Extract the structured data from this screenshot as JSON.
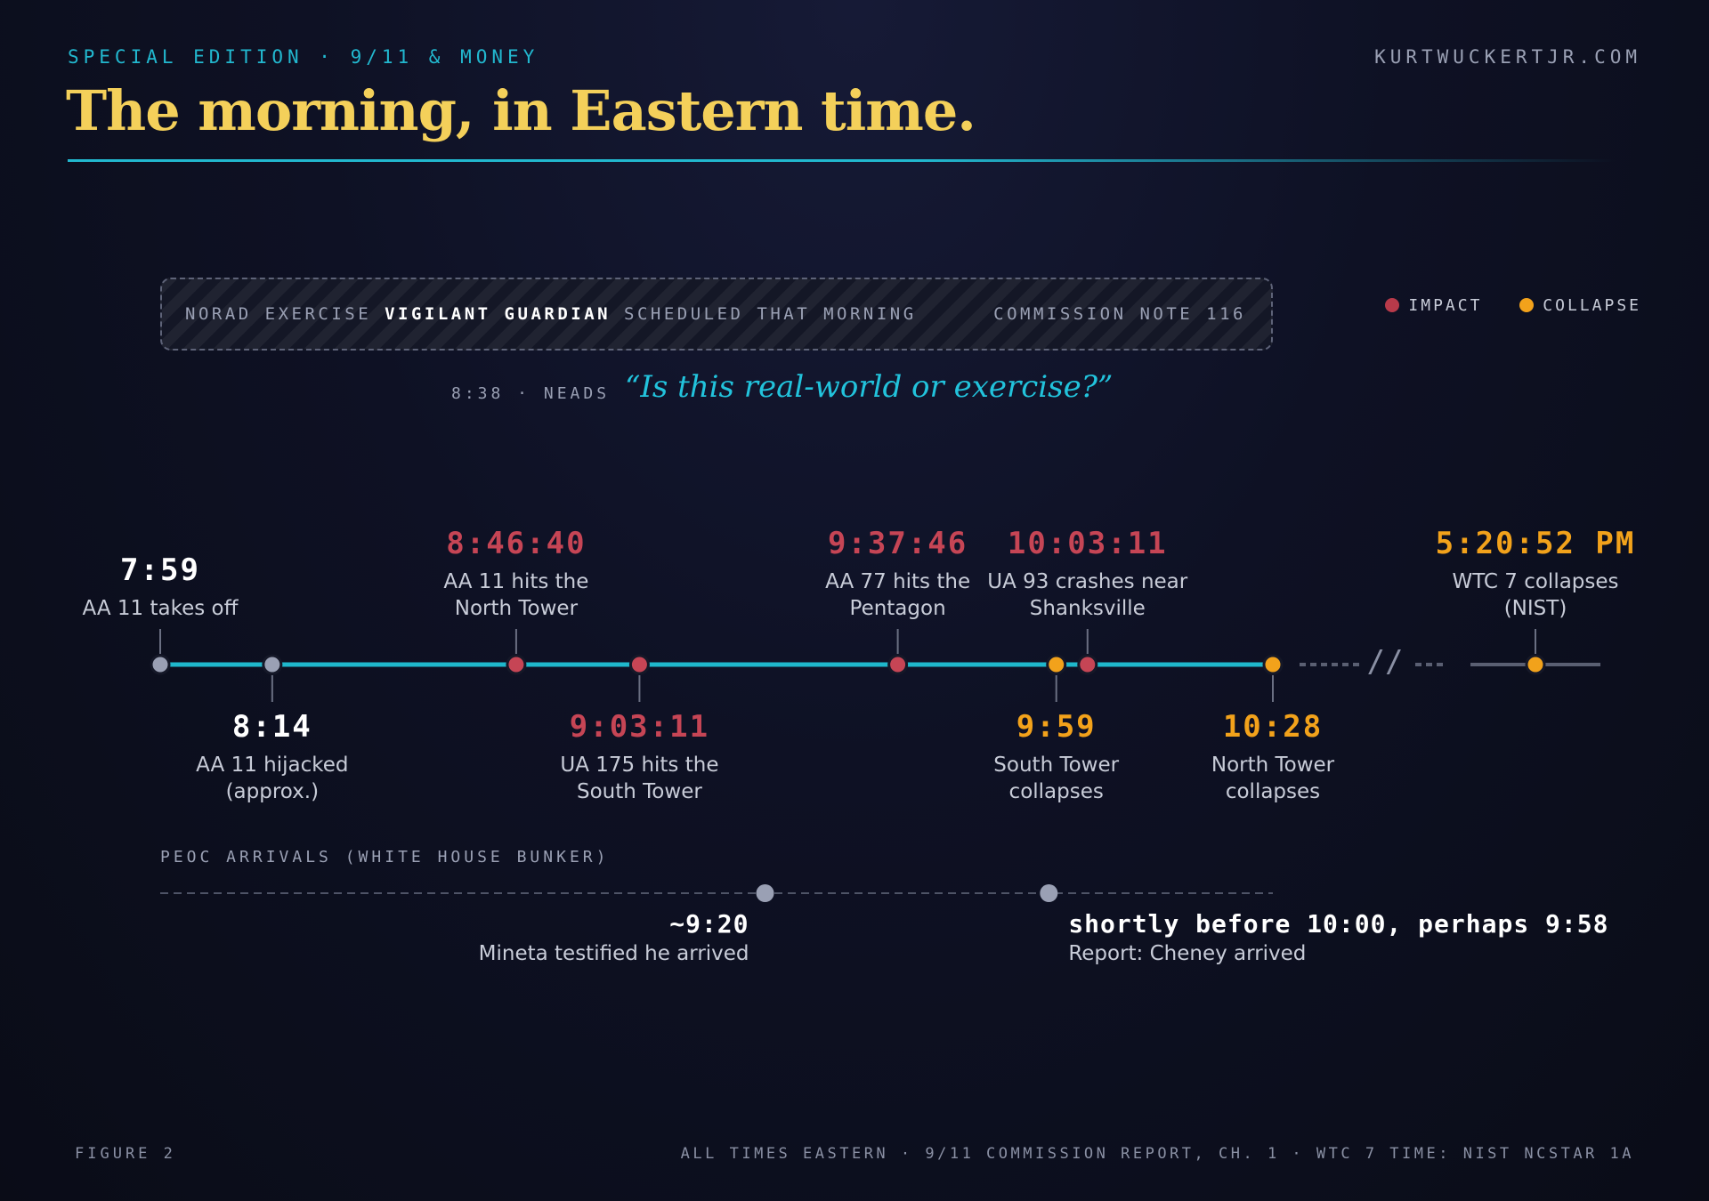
{
  "header": {
    "kicker": "SPECIAL EDITION · 9/11 & MONEY",
    "site": "KURTWUCKERTJR.COM",
    "title": "The morning, in Eastern time."
  },
  "exercise_box": {
    "prefix": "NORAD EXERCISE",
    "name": "VIGILANT GUARDIAN",
    "suffix": "SCHEDULED THAT MORNING",
    "note": "COMMISSION NOTE 116"
  },
  "quote": {
    "time_source": "8:38 · NEADS",
    "text": "“Is this real-world or exercise?”"
  },
  "legend": [
    {
      "label": "IMPACT",
      "color": "#b83a4a"
    },
    {
      "label": "COLLAPSE",
      "color": "#f2a21b"
    }
  ],
  "colors": {
    "timeline": "#1fb8cc",
    "neutral": "#9aa0b4",
    "impact": "#c64555",
    "collapse": "#f2a21b",
    "continuation": "#5a5f72"
  },
  "timeline": {
    "break_label": "//",
    "events": [
      {
        "time": "7:59",
        "label": "AA 11 takes off",
        "kind": "neutral",
        "side": "above",
        "minutes": 479
      },
      {
        "time": "8:14",
        "label": "AA 11 hijacked (approx.)",
        "kind": "neutral",
        "side": "below",
        "minutes": 494
      },
      {
        "time": "8:46:40",
        "label": "AA 11 hits the North Tower",
        "kind": "impact",
        "side": "above",
        "minutes": 526.67
      },
      {
        "time": "9:03:11",
        "label": "UA 175 hits the South Tower",
        "kind": "impact",
        "side": "below",
        "minutes": 543.18
      },
      {
        "time": "9:37:46",
        "label": "AA 77 hits the Pentagon",
        "kind": "impact",
        "side": "above",
        "minutes": 577.77
      },
      {
        "time": "9:59",
        "label": "South Tower collapses",
        "kind": "collapse",
        "side": "below",
        "minutes": 599
      },
      {
        "time": "10:03:11",
        "label": "UA 93 crashes near Shanksville",
        "kind": "impact",
        "side": "above",
        "minutes": 603.18
      },
      {
        "time": "10:28",
        "label": "North Tower collapses",
        "kind": "collapse",
        "side": "below",
        "minutes": 628
      },
      {
        "time": "5:20:52 PM",
        "label": "WTC 7 collapses (NIST)",
        "kind": "collapse",
        "side": "above",
        "minutes": 1040.87,
        "after_break": true
      }
    ]
  },
  "peoc": {
    "label": "PEOC ARRIVALS (WHITE HOUSE BUNKER)",
    "arrivals": [
      {
        "time": "~9:20",
        "label": "Mineta testified he arrived",
        "minutes": 560,
        "align": "right"
      },
      {
        "time": "shortly before 10:00, perhaps 9:58",
        "label": "Report: Cheney arrived",
        "minutes": 598,
        "align": "left"
      }
    ]
  },
  "footer": {
    "figure": "FIGURE 2",
    "sources": "ALL TIMES EASTERN · 9/11 COMMISSION REPORT, CH. 1 · WTC 7 TIME: NIST NCSTAR 1A"
  }
}
